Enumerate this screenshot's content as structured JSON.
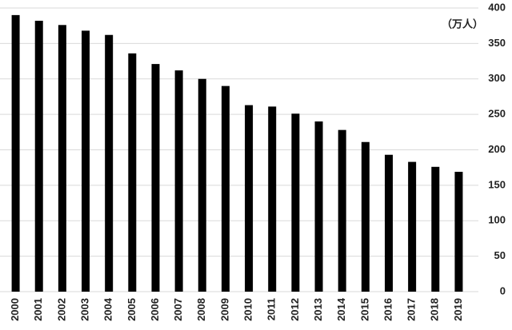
{
  "chart_data": {
    "type": "bar",
    "unit_label": "（万人）",
    "categories": [
      "2000",
      "2001",
      "2002",
      "2003",
      "2004",
      "2005",
      "2006",
      "2007",
      "2008",
      "2009",
      "2010",
      "2011",
      "2012",
      "2013",
      "2014",
      "2015",
      "2016",
      "2017",
      "2018",
      "2019"
    ],
    "values": [
      390,
      382,
      376,
      368,
      362,
      336,
      321,
      312,
      300,
      290,
      263,
      261,
      251,
      240,
      228,
      211,
      193,
      183,
      176,
      169
    ],
    "color": "#000000",
    "ylim": [
      0,
      400
    ],
    "yticks": [
      0,
      50,
      100,
      150,
      200,
      250,
      300,
      350,
      400
    ],
    "grid": true
  }
}
